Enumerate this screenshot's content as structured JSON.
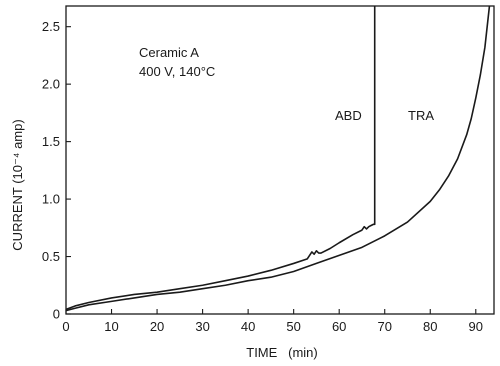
{
  "chart_data": {
    "type": "line",
    "title": "",
    "xlabel": "TIME   (min)",
    "ylabel": "CURRENT (10⁻⁴ amp)",
    "xlim": [
      0,
      94
    ],
    "ylim": [
      0,
      2.68
    ],
    "x_ticks": [
      0,
      10,
      20,
      30,
      40,
      50,
      60,
      70,
      80,
      90
    ],
    "y_ticks": [
      0,
      0.5,
      1.0,
      1.5,
      2.0,
      2.5
    ],
    "x_tick_labels": [
      "0",
      "10",
      "20",
      "30",
      "40",
      "50",
      "60",
      "70",
      "80",
      "90"
    ],
    "y_tick_labels": [
      "0",
      "0.5",
      "1.0",
      "1.5",
      "2.0",
      "2.5"
    ],
    "grid": false,
    "legend": "none",
    "annotations": {
      "specimen": "Ceramic A",
      "conditions": "400 V, 140°C"
    },
    "series": [
      {
        "name": "ABD",
        "color": "#1a1a1a",
        "x": [
          0,
          2,
          5,
          10,
          15,
          20,
          25,
          30,
          35,
          40,
          45,
          50,
          53,
          54,
          54.5,
          55,
          55.5,
          56,
          58,
          60,
          63,
          65,
          65.5,
          66,
          66.5,
          67,
          67.5,
          67.8,
          67.8
        ],
        "y": [
          0.04,
          0.07,
          0.1,
          0.14,
          0.17,
          0.19,
          0.22,
          0.25,
          0.29,
          0.33,
          0.38,
          0.44,
          0.48,
          0.54,
          0.52,
          0.55,
          0.53,
          0.53,
          0.57,
          0.62,
          0.69,
          0.73,
          0.76,
          0.74,
          0.76,
          0.77,
          0.78,
          0.78,
          2.68
        ]
      },
      {
        "name": "TRA",
        "color": "#1a1a1a",
        "x": [
          0,
          2,
          5,
          10,
          15,
          20,
          25,
          30,
          35,
          40,
          45,
          50,
          55,
          60,
          65,
          70,
          75,
          80,
          82,
          84,
          86,
          88,
          89,
          90,
          91,
          92,
          93
        ],
        "y": [
          0.03,
          0.05,
          0.08,
          0.11,
          0.14,
          0.17,
          0.19,
          0.22,
          0.25,
          0.29,
          0.32,
          0.37,
          0.44,
          0.51,
          0.58,
          0.68,
          0.8,
          0.98,
          1.08,
          1.2,
          1.35,
          1.56,
          1.7,
          1.88,
          2.08,
          2.32,
          2.68
        ]
      }
    ]
  }
}
